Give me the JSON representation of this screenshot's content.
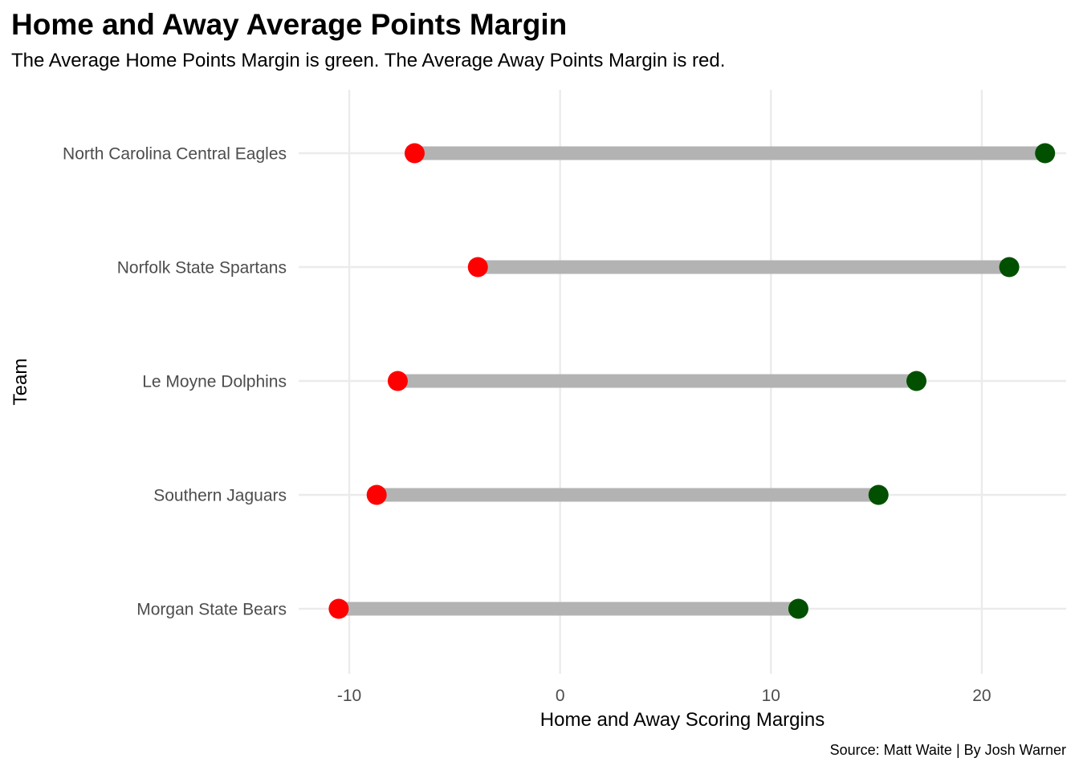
{
  "chart_data": {
    "type": "dumbbell",
    "title": "Home and Away Average Points Margin",
    "subtitle": "The Average Home Points Margin is green. The Average Away Points Margin is red.",
    "xlabel": "Home and Away Scoring Margins",
    "ylabel": "Team",
    "caption": "Source: Matt Waite | By Josh Warner",
    "xlim": [
      -12.4,
      24.0
    ],
    "x_ticks": [
      -10,
      0,
      10,
      20
    ],
    "x_tick_labels": [
      "-10",
      "0",
      "10",
      "20"
    ],
    "grid": true,
    "colors": {
      "home": "#005000",
      "away": "#ff0000",
      "segment": "#b3b3b3",
      "grid": "#ebebeb"
    },
    "teams": [
      {
        "team": "North Carolina Central Eagles",
        "away": -6.9,
        "home": 23.0
      },
      {
        "team": "Norfolk State Spartans",
        "away": -3.9,
        "home": 21.3
      },
      {
        "team": "Le Moyne Dolphins",
        "away": -7.7,
        "home": 16.9
      },
      {
        "team": "Southern Jaguars",
        "away": -8.7,
        "home": 15.1
      },
      {
        "team": "Morgan State Bears",
        "away": -10.5,
        "home": 11.3
      }
    ]
  }
}
